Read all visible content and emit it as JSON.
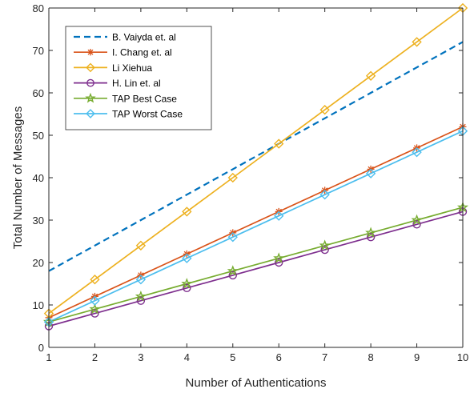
{
  "chart_data": {
    "type": "line",
    "title": "",
    "xlabel": "Number of Authentications",
    "ylabel": "Total Number of Messages",
    "xlim": [
      1,
      10
    ],
    "ylim": [
      0,
      80
    ],
    "xticks": [
      "1",
      "2",
      "3",
      "4",
      "5",
      "6",
      "7",
      "8",
      "9",
      "10"
    ],
    "yticks": [
      "0",
      "10",
      "20",
      "30",
      "40",
      "50",
      "60",
      "70",
      "80"
    ],
    "grid": false,
    "legend_position": "top-left",
    "x": [
      1,
      2,
      3,
      4,
      5,
      6,
      7,
      8,
      9,
      10
    ],
    "series": [
      {
        "name": "B. Vaiyda et. al",
        "color": "#0072BD",
        "line_style": "dashed",
        "marker": "none",
        "values": [
          18,
          24,
          30,
          36,
          42,
          48,
          54,
          60,
          66,
          72
        ]
      },
      {
        "name": "I. Chang et. al",
        "color": "#D95319",
        "line_style": "solid",
        "marker": "asterisk",
        "values": [
          7,
          12,
          17,
          22,
          27,
          32,
          37,
          42,
          47,
          52
        ]
      },
      {
        "name": "Li Xiehua",
        "color": "#EDB120",
        "line_style": "solid",
        "marker": "diamond",
        "values": [
          8,
          16,
          24,
          32,
          40,
          48,
          56,
          64,
          72,
          80
        ]
      },
      {
        "name": "H. Lin et. al",
        "color": "#7E2F8E",
        "line_style": "solid",
        "marker": "circle",
        "values": [
          5,
          8,
          11,
          14,
          17,
          20,
          23,
          26,
          29,
          32
        ]
      },
      {
        "name": "TAP Best Case",
        "color": "#77AC30",
        "line_style": "solid",
        "marker": "pentagram",
        "values": [
          6,
          9,
          12,
          15,
          18,
          21,
          24,
          27,
          30,
          33
        ]
      },
      {
        "name": "TAP Worst Case",
        "color": "#4DBEEE",
        "line_style": "solid",
        "marker": "diamond",
        "values": [
          6,
          11,
          16,
          21,
          26,
          31,
          36,
          41,
          46,
          51
        ]
      }
    ]
  }
}
